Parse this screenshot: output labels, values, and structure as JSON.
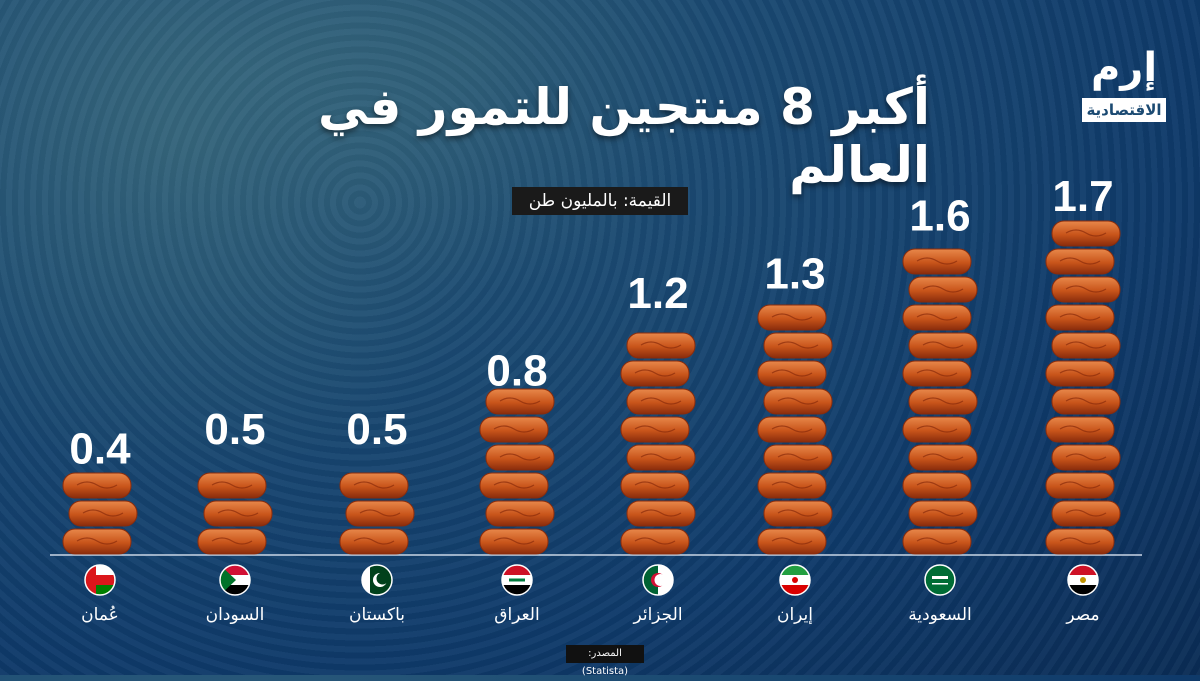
{
  "title": "أكبر 8 منتجين للتمور في العالم",
  "unit_label": "القيمة: بالمليون طن",
  "logo": {
    "main": "إرم",
    "sub": "الاقتصادية"
  },
  "source": "المصدر: (Statista)",
  "colors": {
    "date_fill": "#c8541a",
    "date_highlight": "#e8884a",
    "date_shadow": "#8a2c0c",
    "baseline": "#c9d6e6"
  },
  "chart_data": {
    "type": "bar",
    "title": "أكبر 8 منتجين للتمور في العالم",
    "ylabel": "القيمة: بالمليون طن",
    "categories": [
      "عُمان",
      "السودان",
      "باكستان",
      "العراق",
      "الجزائر",
      "إيران",
      "السعودية",
      "مصر"
    ],
    "values": [
      0.4,
      0.5,
      0.5,
      0.8,
      1.2,
      1.3,
      1.6,
      1.7
    ],
    "value_labels": [
      "0.4",
      "0.5",
      "0.5",
      "0.8",
      "1.2",
      "1.3",
      "1.6",
      "1.7"
    ],
    "flags": [
      "oman-flag-icon",
      "sudan-flag-icon",
      "pakistan-flag-icon",
      "iraq-flag-icon",
      "algeria-flag-icon",
      "iran-flag-icon",
      "saudi-flag-icon",
      "egypt-flag-icon"
    ],
    "ylim": [
      0,
      1.7
    ],
    "grid": false,
    "legend": "none"
  }
}
